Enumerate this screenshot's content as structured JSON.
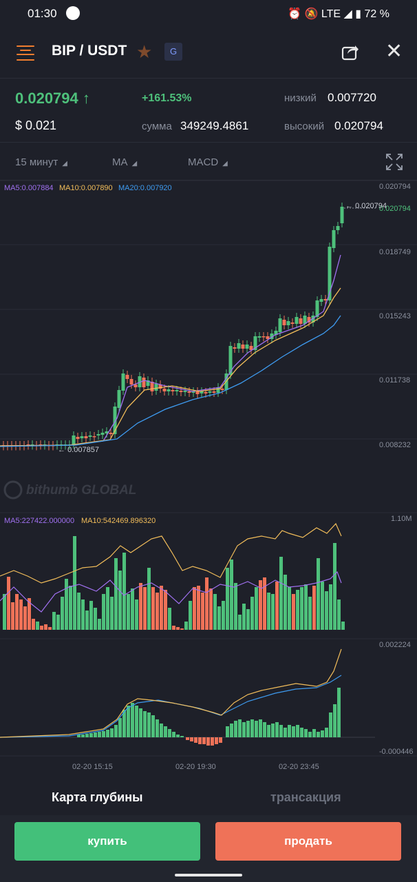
{
  "status_bar": {
    "time": "01:30",
    "network": "LTE",
    "battery": "72 %"
  },
  "header": {
    "pair": "BIP / USDT",
    "badge": "G"
  },
  "ticker": {
    "price": "0.020794",
    "usd": "$ 0.021",
    "change": "+161.53%",
    "sum_label": "сумма",
    "sum_value": "349249.4861",
    "low_label": "низкий",
    "low_value": "0.007720",
    "high_label": "высокий",
    "high_value": "0.020794"
  },
  "toolbar": {
    "interval": "15 минут",
    "main_indicator": "MA",
    "sub_indicator": "MACD"
  },
  "chart": {
    "ma_legend": {
      "ma5": "MA5:0.007884",
      "ma10": "MA10:0.007890",
      "ma20": "MA20:0.007920"
    },
    "price_axis": [
      "0.020794",
      "0.018749",
      "0.015243",
      "0.011738",
      "0.008232"
    ],
    "last_price_tag": "0.020794",
    "max_marker": "0.020794",
    "min_marker": "0.007857",
    "watermark": "bithumb GLOBAL",
    "vol_legend": {
      "ma5": "MA5:227422.000000",
      "ma10": "MA10:542469.896320"
    },
    "vol_axis_max": "1.10M",
    "macd_axis": [
      "0.002224",
      "-0.000446"
    ],
    "time_axis": [
      "02-20 15:15",
      "02-20 19:30",
      "02-20 23:45"
    ],
    "colors": {
      "up": "#4ec07b",
      "down": "#ef7258",
      "ma5": "#a070f0",
      "ma10": "#f2bd5a",
      "ma20": "#3e9bf0"
    }
  },
  "tabs": {
    "depth": "Карта глубины",
    "transactions": "трансакция"
  },
  "actions": {
    "buy": "купить",
    "sell": "продать"
  }
}
